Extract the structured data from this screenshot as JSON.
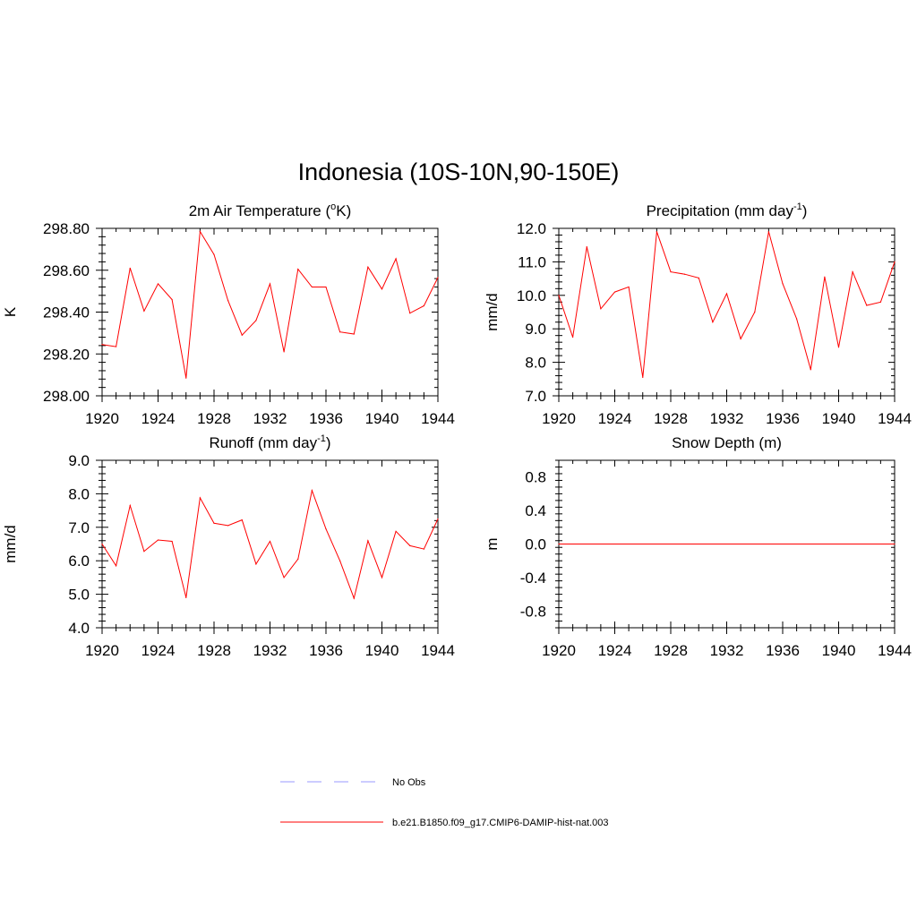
{
  "title": "Indonesia (10S-10N,90-150E)",
  "legend": [
    {
      "label": "No Obs",
      "color": "#9999ff",
      "dash": true
    },
    {
      "label": "b.e21.B1850.f09_g17.CMIP6-DAMIP-hist-nat.003",
      "color": "#ff0000",
      "dash": false
    }
  ],
  "chart_data": [
    {
      "type": "line",
      "title": "2m Air Temperature (°K)",
      "title_main": "2m Air Temperature (",
      "title_sup": "o",
      "title_tail": "K)",
      "ylabel": "K",
      "xlim": [
        1920,
        1944
      ],
      "ylim": [
        298.0,
        298.8
      ],
      "xticks": [
        1920,
        1924,
        1928,
        1932,
        1936,
        1940,
        1944
      ],
      "yticks": [
        "298.00",
        "298.20",
        "298.40",
        "298.60",
        "298.80"
      ],
      "color": "#ff0000",
      "x": [
        1920,
        1921,
        1922,
        1923,
        1924,
        1925,
        1926,
        1927,
        1928,
        1929,
        1930,
        1931,
        1932,
        1933,
        1934,
        1935,
        1936,
        1937,
        1938,
        1939,
        1940,
        1941,
        1942,
        1943,
        1944
      ],
      "y": [
        298.245,
        298.235,
        298.61,
        298.405,
        298.535,
        298.46,
        298.085,
        298.785,
        298.675,
        298.455,
        298.29,
        298.36,
        298.535,
        298.21,
        298.605,
        298.52,
        298.52,
        298.305,
        298.295,
        298.615,
        298.51,
        298.655,
        298.395,
        298.43,
        298.565
      ]
    },
    {
      "type": "line",
      "title": "Precipitation (mm day-1)",
      "title_main": "Precipitation (mm day",
      "title_sup": "-1",
      "title_tail": ")",
      "ylabel": "mm/d",
      "xlim": [
        1920,
        1944
      ],
      "ylim": [
        7.0,
        12.0
      ],
      "xticks": [
        1920,
        1924,
        1928,
        1932,
        1936,
        1940,
        1944
      ],
      "yticks": [
        "7.0",
        "8.0",
        "9.0",
        "10.0",
        "11.0",
        "12.0"
      ],
      "color": "#ff0000",
      "x": [
        1920,
        1921,
        1922,
        1923,
        1924,
        1925,
        1926,
        1927,
        1928,
        1929,
        1930,
        1931,
        1932,
        1933,
        1934,
        1935,
        1936,
        1937,
        1938,
        1939,
        1940,
        1941,
        1942,
        1943,
        1944
      ],
      "y": [
        10.0,
        8.75,
        11.45,
        9.6,
        10.1,
        10.25,
        7.55,
        11.9,
        10.7,
        10.63,
        10.52,
        9.2,
        10.05,
        8.7,
        9.5,
        11.9,
        10.35,
        9.3,
        7.78,
        10.55,
        8.45,
        10.7,
        9.7,
        9.8,
        11.0
      ]
    },
    {
      "type": "line",
      "title": "Runoff (mm day-1)",
      "title_main": "Runoff (mm day",
      "title_sup": "-1",
      "title_tail": ")",
      "ylabel": "mm/d",
      "xlim": [
        1920,
        1944
      ],
      "ylim": [
        4.0,
        9.0
      ],
      "xticks": [
        1920,
        1924,
        1928,
        1932,
        1936,
        1940,
        1944
      ],
      "yticks": [
        "4.0",
        "5.0",
        "6.0",
        "7.0",
        "8.0",
        "9.0"
      ],
      "color": "#ff0000",
      "x": [
        1920,
        1921,
        1922,
        1923,
        1924,
        1925,
        1926,
        1927,
        1928,
        1929,
        1930,
        1931,
        1932,
        1933,
        1934,
        1935,
        1936,
        1937,
        1938,
        1939,
        1940,
        1941,
        1942,
        1943,
        1944
      ],
      "y": [
        6.5,
        5.85,
        7.65,
        6.28,
        6.62,
        6.58,
        4.9,
        7.88,
        7.12,
        7.05,
        7.22,
        5.9,
        6.58,
        5.5,
        6.05,
        8.1,
        6.95,
        6.0,
        4.88,
        6.6,
        5.5,
        6.88,
        6.45,
        6.35,
        7.25
      ]
    },
    {
      "type": "line",
      "title": "Snow Depth (m)",
      "title_main": "Snow Depth (m)",
      "title_sup": "",
      "title_tail": "",
      "ylabel": "m",
      "xlim": [
        1920,
        1944
      ],
      "ylim": [
        -1.0,
        1.0
      ],
      "xticks": [
        1920,
        1924,
        1928,
        1932,
        1936,
        1940,
        1944
      ],
      "yticks": [
        "-0.8",
        "-0.4",
        "0.0",
        "0.4",
        "0.8"
      ],
      "color": "#ff0000",
      "x": [
        1920,
        1944
      ],
      "y": [
        0.0,
        0.0
      ]
    }
  ]
}
